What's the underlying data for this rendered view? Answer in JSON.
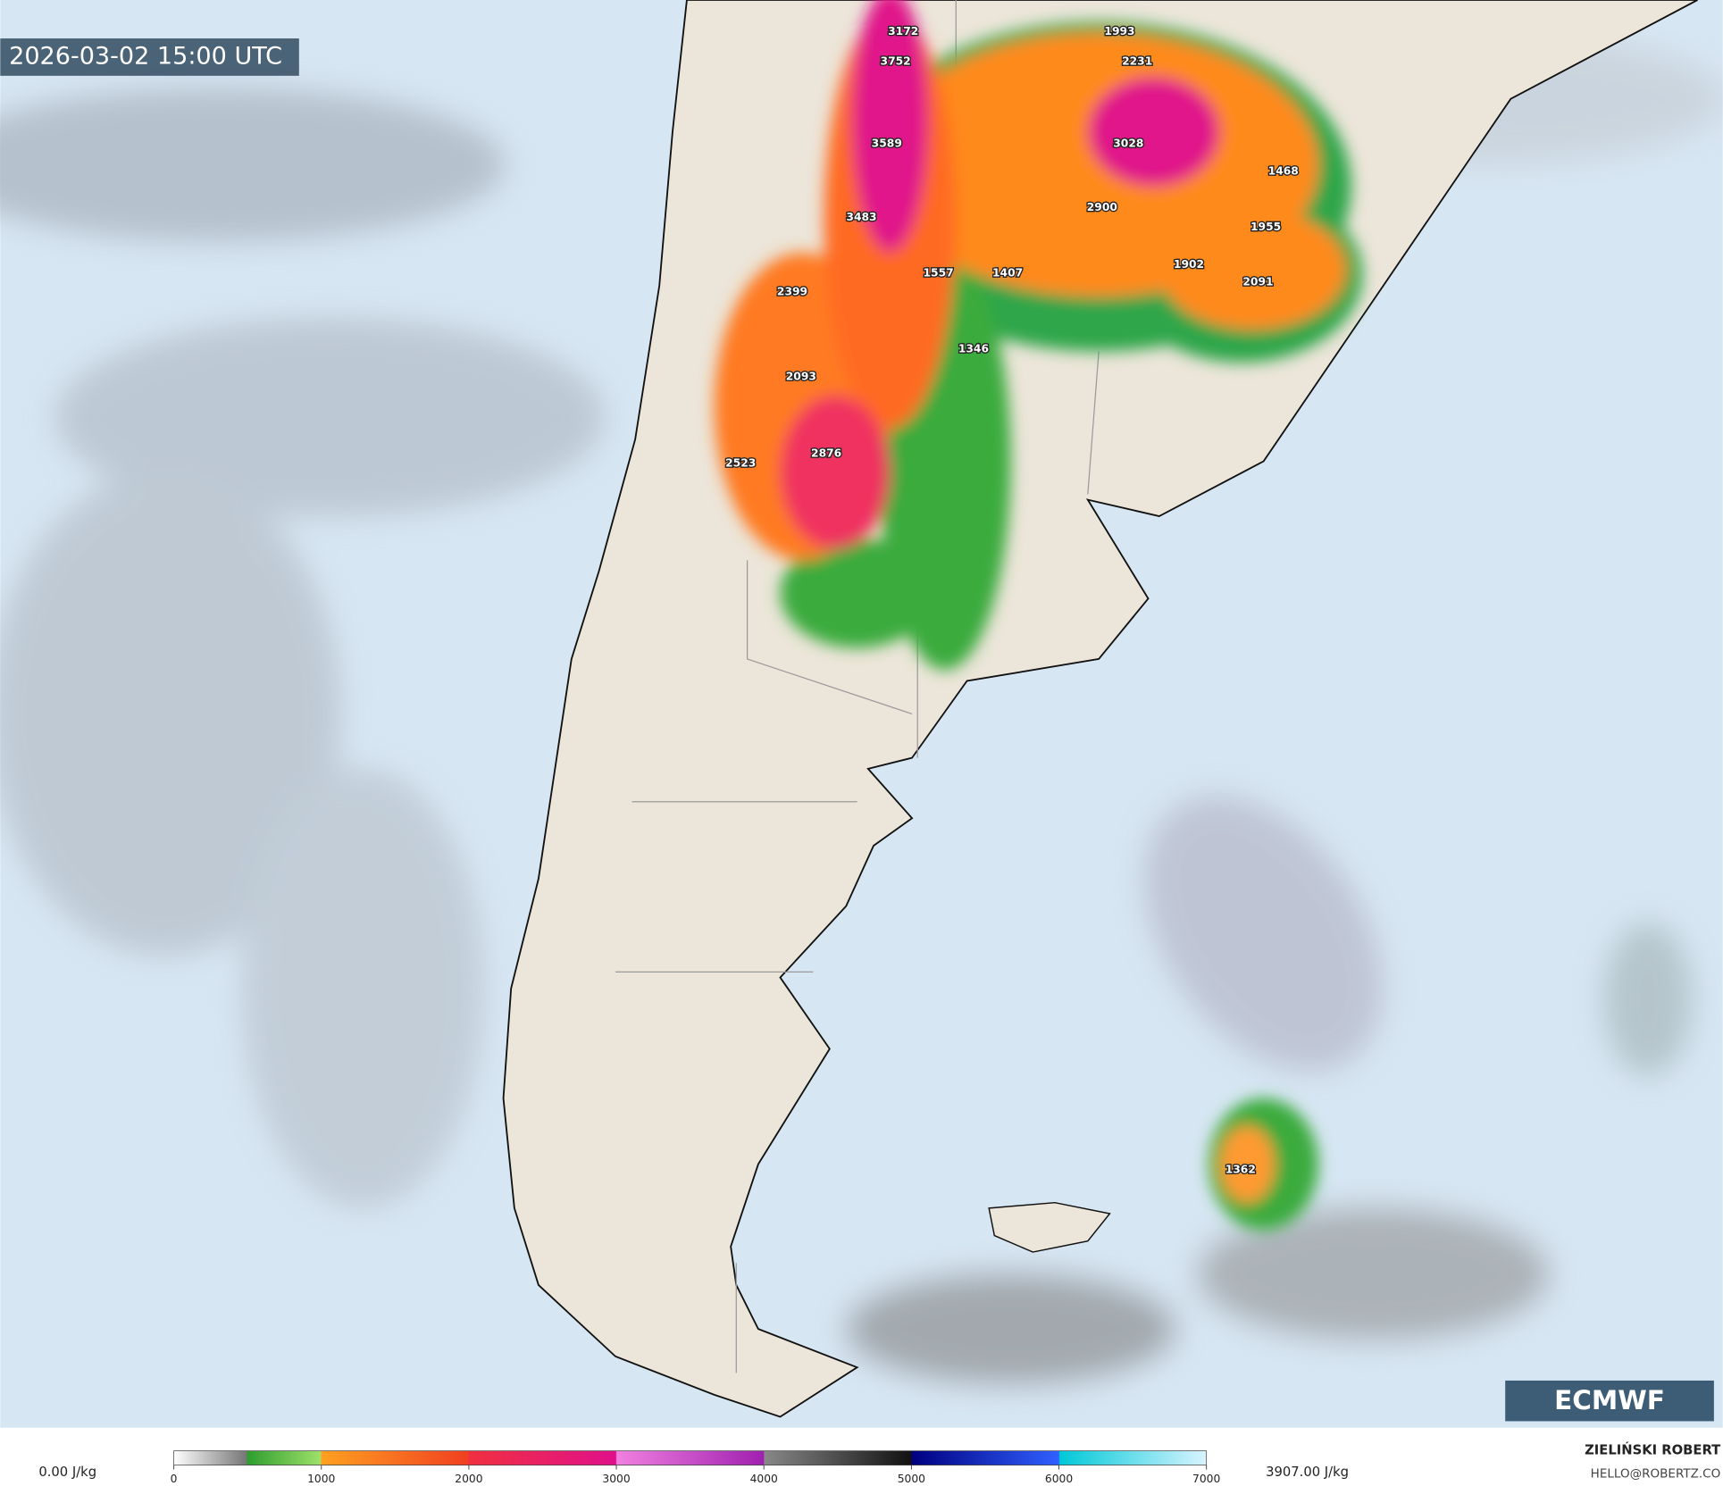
{
  "map": {
    "timestamp": "2026-03-02 15:00 UTC",
    "logo": "ECMWF",
    "cape_labels": [
      3172,
      3752,
      1993,
      2231,
      3589,
      3028,
      1468,
      2900,
      3483,
      1955,
      1557,
      1407,
      1902,
      2091,
      2399,
      1346,
      2093,
      2523,
      2876,
      1362
    ]
  },
  "colorbar": {
    "min_label": "0.00 J/kg",
    "max_label": "3907.00 J/kg",
    "ticks": [
      0,
      1000,
      2000,
      3000,
      4000,
      5000,
      6000,
      7000
    ],
    "range": [
      0,
      7000
    ]
  },
  "credits": {
    "author": "ZIELIŃSKI ROBERT",
    "contact": "HELLO@ROBERTZ.CO"
  }
}
